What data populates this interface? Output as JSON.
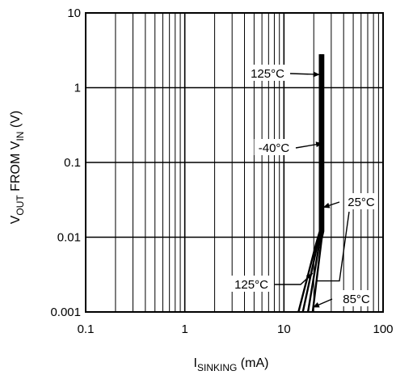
{
  "chart_data": {
    "type": "line",
    "xscale": "log",
    "yscale": "log",
    "xlim": [
      0.1,
      100
    ],
    "ylim": [
      0.001,
      10
    ],
    "grid": true,
    "xlabel": {
      "main": "I",
      "sub": "SINKING",
      "unit": " (mA)"
    },
    "ylabel": {
      "p1": "V",
      "p1sub": "OUT",
      "p2": " FROM V",
      "p2sub": "IN",
      "unit": " (V)"
    },
    "xticks": [
      {
        "value": 0.1,
        "label": "0.1"
      },
      {
        "value": 1,
        "label": "1"
      },
      {
        "value": 10,
        "label": "10"
      },
      {
        "value": 100,
        "label": "100"
      }
    ],
    "yticks": [
      {
        "value": 0.001,
        "label": "0.001"
      },
      {
        "value": 0.01,
        "label": "0.01"
      },
      {
        "value": 0.1,
        "label": "0.1"
      },
      {
        "value": 1,
        "label": "1"
      },
      {
        "value": 10,
        "label": "10"
      }
    ],
    "series": [
      {
        "name": "125°C",
        "x": [
          14.0,
          21.0,
          23.0,
          23.0
        ],
        "y": [
          0.001,
          0.008,
          0.012,
          2.8
        ]
      },
      {
        "name": "85°C",
        "x": [
          15.5,
          22.0,
          23.6,
          23.6
        ],
        "y": [
          0.001,
          0.0085,
          0.012,
          2.8
        ]
      },
      {
        "name": "25°C",
        "x": [
          17.5,
          23.0,
          24.3,
          24.3
        ],
        "y": [
          0.001,
          0.009,
          0.012,
          2.8
        ]
      },
      {
        "name": "-40°C",
        "x": [
          19.5,
          24.0,
          25.0,
          25.0
        ],
        "y": [
          0.001,
          0.0095,
          0.012,
          2.8
        ]
      }
    ],
    "annotations": [
      {
        "text": "125°C",
        "arrow_to": {
          "x": 23.0,
          "y": 1.5
        }
      },
      {
        "text": "-40°C",
        "arrow_to": {
          "x": 24.5,
          "y": 0.18
        }
      },
      {
        "text": "25°C",
        "arrow_to": {
          "x": 24.8,
          "y": 0.025
        }
      },
      {
        "text": "125°C",
        "arrow_to": {
          "x": 19.5,
          "y": 0.0033
        }
      },
      {
        "text": "85°C",
        "arrow_to": {
          "x": 19.5,
          "y": 0.00115
        }
      }
    ]
  }
}
